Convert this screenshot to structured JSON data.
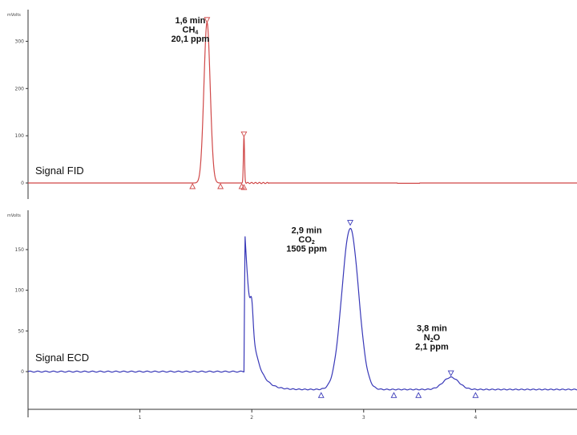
{
  "chart_data": [
    {
      "type": "line",
      "id": "fid",
      "ylabel": "mVolts",
      "ylim": [
        0,
        350
      ],
      "yticks": [
        0,
        100,
        200,
        300
      ],
      "xlim": [
        0,
        5
      ],
      "color": "#d04848",
      "series": [
        {
          "name": "Signal FID",
          "peaks": [
            {
              "center": 1.6,
              "height": 340,
              "sigma": 0.028
            },
            {
              "center": 1.93,
              "height": 98,
              "sigma": 0.005
            }
          ],
          "baseline": 0
        }
      ],
      "markers": [
        {
          "x": 1.6,
          "y": 340,
          "dir": "down"
        },
        {
          "x": 1.93,
          "y": 98,
          "dir": "down"
        },
        {
          "x": 1.47,
          "y": 0,
          "dir": "up"
        },
        {
          "x": 1.72,
          "y": 0,
          "dir": "up"
        },
        {
          "x": 1.91,
          "y": 0,
          "dir": "up"
        },
        {
          "x": 1.93,
          "y": -2,
          "dir": "up"
        }
      ],
      "annotations": [
        {
          "x": 1.44,
          "lines": [
            "1,6 min",
            "CH",
            "20,1 ppm"
          ],
          "sub": "4",
          "y_top": 338
        }
      ]
    },
    {
      "type": "line",
      "id": "ecd",
      "ylabel": "mVolts",
      "ylim": [
        -40,
        190
      ],
      "yticks": [
        0,
        50,
        100,
        150
      ],
      "xlim": [
        0,
        5
      ],
      "xticks": [
        1,
        2,
        3,
        4
      ],
      "color": "#3838b8",
      "series": [
        {
          "name": "Signal ECD",
          "baseline": 0,
          "step_x": 1.93,
          "step_peak": 195,
          "peaks": [
            {
              "center": 2.88,
              "height": 198,
              "sigma": 0.075
            },
            {
              "center": 3.78,
              "height": 15,
              "sigma": 0.07
            }
          ]
        }
      ],
      "markers": [
        {
          "x": 2.88,
          "y": 180,
          "dir": "down"
        },
        {
          "x": 3.78,
          "y": -5,
          "dir": "down"
        },
        {
          "x": 2.62,
          "y": -25,
          "dir": "up"
        },
        {
          "x": 3.27,
          "y": -25,
          "dir": "up"
        },
        {
          "x": 3.49,
          "y": -25,
          "dir": "up"
        },
        {
          "x": 4.0,
          "y": -25,
          "dir": "up"
        }
      ],
      "annotations": [
        {
          "x": 2.48,
          "lines": [
            "2,9 min",
            "CO",
            "1505 ppm"
          ],
          "sub": "2",
          "y_top": 170
        },
        {
          "x": 3.6,
          "lines": [
            "3,8 min",
            "N",
            "2,1 ppm"
          ],
          "sub": "2",
          "suffix": "O",
          "y_top": 50
        }
      ]
    }
  ]
}
